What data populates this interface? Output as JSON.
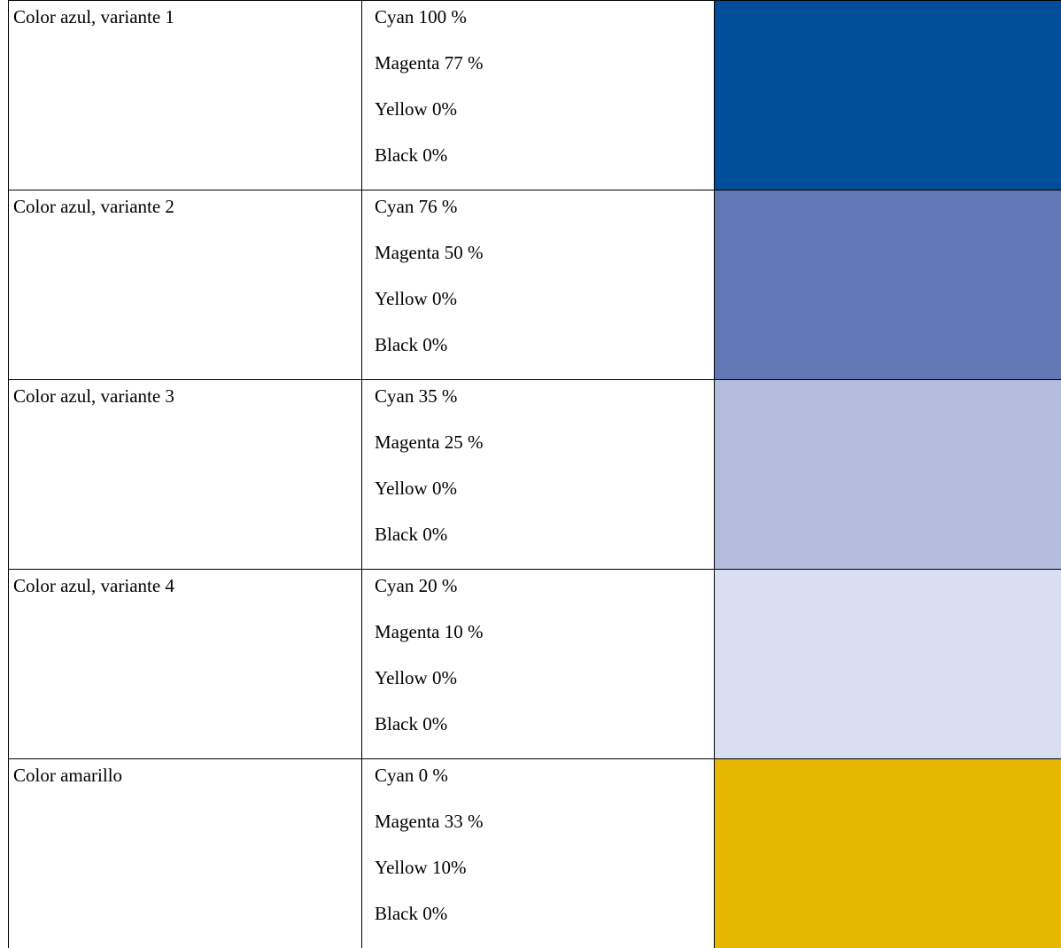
{
  "rows": [
    {
      "name": "Color azul, variante 1",
      "values": [
        "Cyan 100 %",
        "Magenta 77 %",
        "Yellow 0%",
        "Black 0%"
      ],
      "swatch": "#004e9a"
    },
    {
      "name": "Color azul, variante 2",
      "values": [
        "Cyan 76 %",
        "Magenta 50 %",
        "Yellow 0%",
        "Black 0%"
      ],
      "swatch": "#6278b5"
    },
    {
      "name": "Color azul, variante 3",
      "values": [
        "Cyan 35 %",
        "Magenta 25 %",
        "Yellow 0%",
        "Black 0%"
      ],
      "swatch": "#b2bcdc"
    },
    {
      "name": "Color azul, variante 4",
      "values": [
        "Cyan 20 %",
        "Magenta 10 %",
        "Yellow 0%",
        "Black 0%"
      ],
      "swatch": "#d9dff0"
    },
    {
      "name": "Color amarillo",
      "values": [
        "Cyan 0 %",
        "Magenta 33 %",
        "Yellow 10%",
        "Black 0%"
      ],
      "swatch": "#e6b700"
    }
  ]
}
